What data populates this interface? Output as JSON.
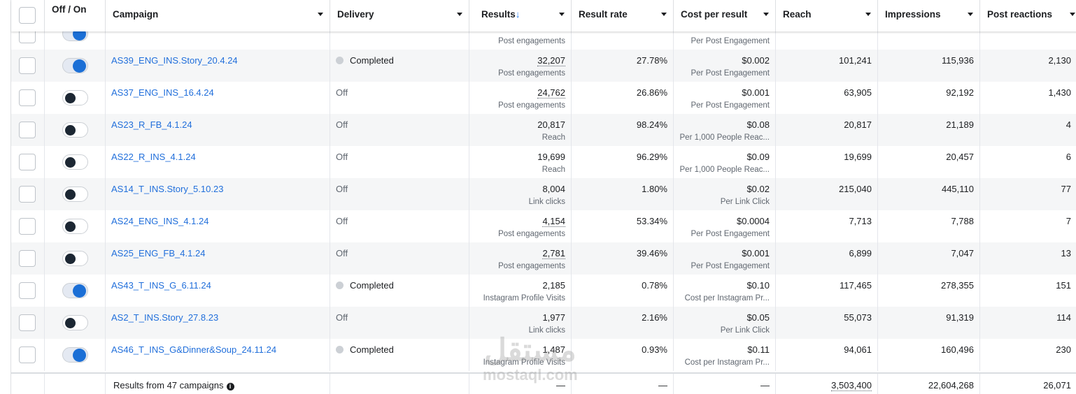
{
  "header": {
    "select_all": "",
    "toggle": "Off / On",
    "campaign": "Campaign",
    "delivery": "Delivery",
    "results": "Results",
    "results_sort": "↓",
    "result_rate": "Result rate",
    "cost_per_result": "Cost per result",
    "reach": "Reach",
    "impressions": "Impressions",
    "post_reactions": "Post reactions"
  },
  "partial_row": {
    "on": true,
    "results_sub": "Post engagements",
    "cost_sub": "Per Post Engagement"
  },
  "rows": [
    {
      "name": "AS39_ENG_INS.Story_20.4.24",
      "on": true,
      "delivery": "Completed",
      "results": "32,207",
      "results_sub": "Post engagements",
      "rate": "27.78%",
      "cost": "$0.002",
      "cost_sub": "Per Post Engagement",
      "reach": "101,241",
      "impressions": "115,936",
      "reactions": "2,130"
    },
    {
      "name": "AS37_ENG_INS_16.4.24",
      "on": false,
      "delivery": "Off",
      "results": "24,762",
      "results_sub": "Post engagements",
      "rate": "26.86%",
      "cost": "$0.001",
      "cost_sub": "Per Post Engagement",
      "reach": "63,905",
      "impressions": "92,192",
      "reactions": "1,430"
    },
    {
      "name": "AS23_R_FB_4.1.24",
      "on": false,
      "delivery": "Off",
      "results": "20,817",
      "results_sub": "Reach",
      "rate": "98.24%",
      "cost": "$0.08",
      "cost_sub": "Per 1,000 People Reac...",
      "reach": "20,817",
      "impressions": "21,189",
      "reactions": "4"
    },
    {
      "name": "AS22_R_INS_4.1.24",
      "on": false,
      "delivery": "Off",
      "results": "19,699",
      "results_sub": "Reach",
      "rate": "96.29%",
      "cost": "$0.09",
      "cost_sub": "Per 1,000 People Reac...",
      "reach": "19,699",
      "impressions": "20,457",
      "reactions": "6"
    },
    {
      "name": "AS14_T_INS.Story_5.10.23",
      "on": false,
      "delivery": "Off",
      "results": "8,004",
      "results_sub": "Link clicks",
      "rate": "1.80%",
      "cost": "$0.02",
      "cost_sub": "Per Link Click",
      "reach": "215,040",
      "impressions": "445,110",
      "reactions": "77"
    },
    {
      "name": "AS24_ENG_INS_4.1.24",
      "on": false,
      "delivery": "Off",
      "results": "4,154",
      "results_sub": "Post engagements",
      "rate": "53.34%",
      "cost": "$0.0004",
      "cost_sub": "Per Post Engagement",
      "reach": "7,713",
      "impressions": "7,788",
      "reactions": "7"
    },
    {
      "name": "AS25_ENG_FB_4.1.24",
      "on": false,
      "delivery": "Off",
      "results": "2,781",
      "results_sub": "Post engagements",
      "rate": "39.46%",
      "cost": "$0.001",
      "cost_sub": "Per Post Engagement",
      "reach": "6,899",
      "impressions": "7,047",
      "reactions": "13"
    },
    {
      "name": "AS43_T_INS_G_6.11.24",
      "on": true,
      "delivery": "Completed",
      "results": "2,185",
      "results_sub": "Instagram Profile Visits",
      "rate": "0.78%",
      "cost": "$0.10",
      "cost_sub": "Cost per Instagram Pr...",
      "reach": "117,465",
      "impressions": "278,355",
      "reactions": "151"
    },
    {
      "name": "AS2_T_INS.Story_27.8.23",
      "on": false,
      "delivery": "Off",
      "results": "1,977",
      "results_sub": "Link clicks",
      "rate": "2.16%",
      "cost": "$0.05",
      "cost_sub": "Per Link Click",
      "reach": "55,073",
      "impressions": "91,319",
      "reactions": "114"
    },
    {
      "name": "AS46_T_INS_G&Dinner&Soup_24.11.24",
      "on": true,
      "delivery": "Completed",
      "results": "1,487",
      "results_sub": "Instagram Profile Visits",
      "rate": "0.93%",
      "cost": "$0.11",
      "cost_sub": "Cost per Instagram Pr...",
      "reach": "94,061",
      "impressions": "160,496",
      "reactions": "230"
    }
  ],
  "footer": {
    "label": "Results from 47 campaigns",
    "info_icon": "i",
    "results": "—",
    "rate": "—",
    "cost": "—",
    "reach": "3,503,400",
    "impressions": "22,604,268",
    "reactions": "26,071"
  },
  "watermark": {
    "arabic": "مستقل",
    "latin": "mostaql.com"
  },
  "colors": {
    "link": "#216fdb",
    "toggle_on": "#1b6fd6",
    "row_alt": "#f5f6f7"
  }
}
